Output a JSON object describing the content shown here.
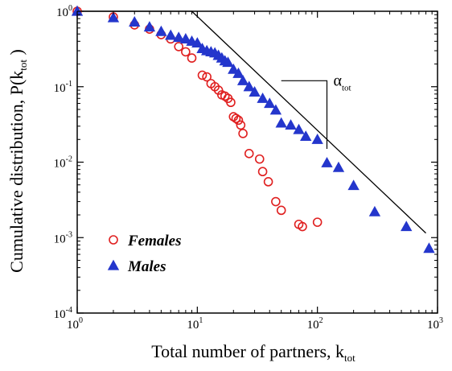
{
  "chart_data": {
    "type": "scatter",
    "x_scale": "log",
    "y_scale": "log",
    "xlim": [
      1,
      1000
    ],
    "ylim": [
      0.0001,
      1
    ],
    "grid": false,
    "legend_placement": "bottom-left",
    "xlabel": "Total number of partners, k",
    "xlabel_subscript": "tot",
    "ylabel": "Cumulative distribution, P(k",
    "ylabel_subscript": "tot",
    "ylabel_close": " )",
    "x_ticks": [
      {
        "value": 1,
        "base": "10",
        "exp": "0"
      },
      {
        "value": 10,
        "base": "10",
        "exp": "1"
      },
      {
        "value": 100,
        "base": "10",
        "exp": "2"
      },
      {
        "value": 1000,
        "base": "10",
        "exp": "3"
      }
    ],
    "y_ticks": [
      {
        "value": 1,
        "base": "10",
        "exp": "0"
      },
      {
        "value": 0.1,
        "base": "10",
        "exp": "-1"
      },
      {
        "value": 0.01,
        "base": "10",
        "exp": "-2"
      },
      {
        "value": 0.001,
        "base": "10",
        "exp": "-3"
      },
      {
        "value": 0.0001,
        "base": "10",
        "exp": "-4"
      }
    ],
    "series": [
      {
        "name": "Females",
        "marker": "open-circle",
        "color": "#e02020",
        "x": [
          1,
          2,
          3,
          4,
          5,
          6,
          7,
          8,
          9,
          11,
          12,
          13,
          14,
          15,
          16,
          17,
          18,
          19,
          20,
          21,
          22,
          23,
          24,
          27,
          33,
          35,
          39,
          45,
          50,
          70,
          75,
          100
        ],
        "y": [
          1,
          0.84,
          0.66,
          0.58,
          0.49,
          0.43,
          0.34,
          0.29,
          0.24,
          0.142,
          0.135,
          0.11,
          0.1,
          0.09,
          0.078,
          0.075,
          0.07,
          0.062,
          0.04,
          0.038,
          0.036,
          0.031,
          0.024,
          0.013,
          0.011,
          0.0075,
          0.0055,
          0.003,
          0.0023,
          0.0015,
          0.0014,
          0.0016
        ]
      },
      {
        "name": "Males",
        "marker": "filled-triangle",
        "color": "#2436cc",
        "x": [
          1,
          2,
          3,
          4,
          5,
          6,
          7,
          8,
          9,
          10,
          11,
          12,
          13,
          14,
          15,
          16,
          17,
          18,
          20,
          22,
          24,
          27,
          30,
          35,
          40,
          45,
          50,
          60,
          70,
          80,
          100,
          120,
          150,
          200,
          300,
          550,
          850
        ],
        "y": [
          1,
          0.82,
          0.72,
          0.62,
          0.54,
          0.48,
          0.45,
          0.43,
          0.4,
          0.38,
          0.32,
          0.3,
          0.29,
          0.28,
          0.26,
          0.24,
          0.22,
          0.21,
          0.17,
          0.15,
          0.12,
          0.1,
          0.085,
          0.07,
          0.06,
          0.049,
          0.033,
          0.031,
          0.027,
          0.022,
          0.02,
          0.0098,
          0.0085,
          0.0049,
          0.0022,
          0.0014,
          0.00072
        ]
      }
    ],
    "fit_line": {
      "points": [
        [
          1,
          1
        ],
        [
          9,
          1
        ],
        [
          800,
          0.00115
        ]
      ]
    },
    "annotation": {
      "symbol": "α",
      "subscript": "tot",
      "slope_triangle": {
        "top": [
          50,
          0.12
        ],
        "corner": [
          120,
          0.12
        ],
        "bottom": [
          120,
          0.015
        ]
      }
    }
  }
}
